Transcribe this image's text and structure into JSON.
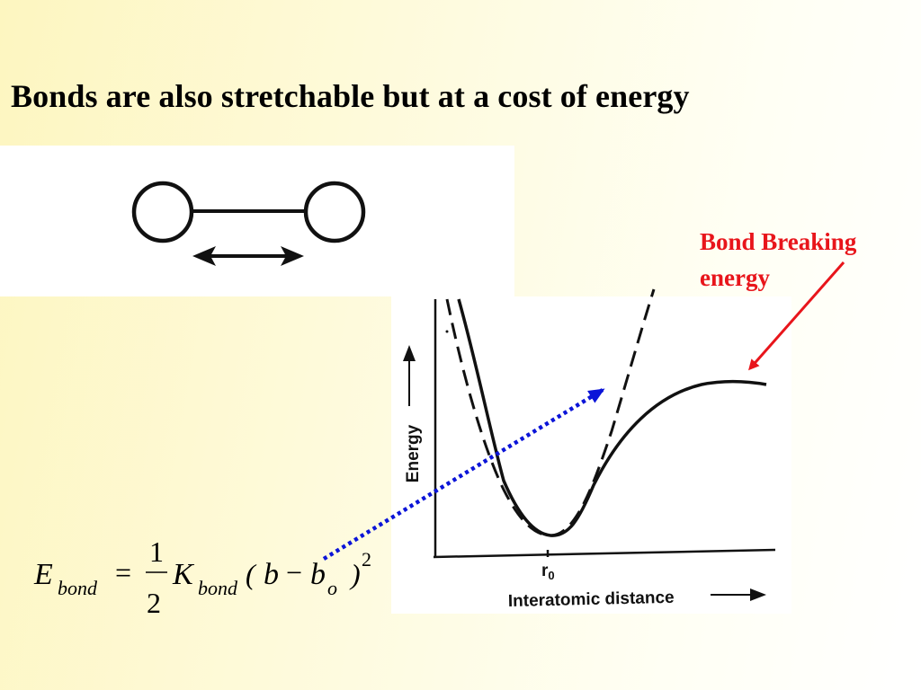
{
  "slide": {
    "title": "Bonds are also stretchable but at a cost of energy",
    "background_colors": [
      "#fdf6c0",
      "#ffffff"
    ]
  },
  "molecule": {
    "atoms": 2,
    "arrow": "double-headed"
  },
  "plot": {
    "ylabel": "Energy",
    "xlabel": "Interatomic distance",
    "r0_label": "r",
    "r0_subscript": "0",
    "curves": [
      "morse-solid",
      "harmonic-dashed"
    ]
  },
  "annotation": {
    "line1": "Bond Breaking",
    "line2": "energy",
    "color": "#e8151b"
  },
  "equation": {
    "E": "E",
    "E_sub": "bond",
    "equals": "=",
    "numerator": "1",
    "denominator": "2",
    "K": "K",
    "K_sub": "bond",
    "lparen": "(",
    "b": "b",
    "minus": "−",
    "b2": "b",
    "b2_sub": "o",
    "rparen": ")",
    "exponent": "2"
  },
  "pointer_arrow": {
    "color": "#0b14d8",
    "style": "dotted"
  }
}
